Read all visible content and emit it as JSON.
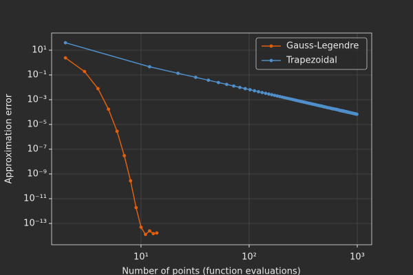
{
  "chart_data": {
    "type": "line",
    "xlabel": "Number of points (function evaluations)",
    "ylabel": "Approximation error",
    "xscale": "log",
    "yscale": "log",
    "grid": true,
    "legend": "upper right",
    "xlim": [
      1.49,
      1360
    ],
    "ylim": [
      1.9e-15,
      245
    ],
    "xticks": [
      {
        "value": 10,
        "label": "10¹"
      },
      {
        "value": 100,
        "label": "10²"
      },
      {
        "value": 1000,
        "label": "10³"
      }
    ],
    "yticks": [
      {
        "value": 10,
        "label": "10¹"
      },
      {
        "value": 0.1,
        "label": "10⁻¹"
      },
      {
        "value": 0.001,
        "label": "10⁻³"
      },
      {
        "value": 1e-05,
        "label": "10⁻⁵"
      },
      {
        "value": 1e-07,
        "label": "10⁻⁷"
      },
      {
        "value": 1e-09,
        "label": "10⁻⁹"
      },
      {
        "value": 1e-11,
        "label": "10⁻¹¹"
      },
      {
        "value": 1e-13,
        "label": "10⁻¹³"
      }
    ],
    "series": [
      {
        "name": "Gauss-Legendre",
        "color": "#e0600f",
        "x": [
          2,
          3,
          4,
          5,
          6,
          7,
          8,
          9,
          10,
          11,
          12,
          13,
          14
        ],
        "values": [
          2.4,
          0.19,
          0.0078,
          0.00017,
          2.8e-06,
          3e-08,
          2.8e-10,
          1.9e-12,
          5e-14,
          1.3e-14,
          2.5e-14,
          1.5e-14,
          1.7e-14
        ]
      },
      {
        "name": "Trapezoidal",
        "color": "#4f8fca",
        "x": [
          2,
          12,
          22,
          32,
          42,
          52,
          62,
          72,
          82,
          92,
          102,
          112,
          122,
          132,
          142,
          152,
          162,
          172,
          182,
          192,
          202,
          212,
          222,
          232,
          242,
          252,
          262,
          272,
          282,
          292,
          302,
          312,
          322,
          332,
          342,
          352,
          362,
          372,
          382,
          392,
          402,
          412,
          422,
          432,
          442,
          452,
          462,
          472,
          482,
          492,
          502,
          512,
          522,
          532,
          542,
          552,
          562,
          572,
          582,
          592,
          602,
          612,
          622,
          632,
          642,
          652,
          662,
          672,
          682,
          692,
          702,
          712,
          722,
          732,
          742,
          752,
          762,
          772,
          782,
          792,
          802,
          812,
          822,
          832,
          842,
          852,
          862,
          872,
          882,
          892,
          902,
          912,
          922,
          932,
          942,
          952,
          962,
          972,
          982,
          992
        ],
        "values": [
          40,
          0.458,
          0.136,
          0.0645,
          0.0374,
          0.0244,
          0.0172,
          0.0127,
          0.00982,
          0.0078,
          0.00634,
          0.00526,
          0.00443,
          0.00379,
          0.00327,
          0.00286,
          0.00251,
          0.00223,
          0.00199,
          0.00179,
          0.00162,
          0.00147,
          0.00134,
          0.00123,
          0.00113,
          0.00104,
          0.00096,
          0.00089,
          0.00083,
          0.00077,
          0.00072,
          0.00068,
          0.00064,
          0.0006,
          0.00056,
          0.00053,
          0.0005,
          0.00048,
          0.00045,
          0.00043,
          0.00041,
          0.00039,
          0.00037,
          0.00035,
          0.00034,
          0.00032,
          0.00031,
          0.0003,
          0.00028,
          0.00027,
          0.00026,
          0.00025,
          0.00024,
          0.00023,
          0.00022,
          0.00022,
          0.00021,
          0.0002,
          0.00019,
          0.00019,
          0.00018,
          0.00018,
          0.00017,
          0.00017,
          0.00016,
          0.00016,
          0.00015,
          0.00015,
          0.00014,
          0.00014,
          0.00013,
          0.00013,
          0.00013,
          0.00012,
          0.00012,
          0.00012,
          0.00011,
          0.00011,
          0.00011,
          0.00011,
          0.0001,
          0.0001,
          9.8e-05,
          9.5e-05,
          9.3e-05,
          9.1e-05,
          8.9e-05,
          8.7e-05,
          8.5e-05,
          8.3e-05,
          8.1e-05,
          7.9e-05,
          7.8e-05,
          7.6e-05,
          7.4e-05,
          7.3e-05,
          7.1e-05,
          7e-05,
          6.8e-05,
          6.7e-05
        ]
      }
    ]
  }
}
